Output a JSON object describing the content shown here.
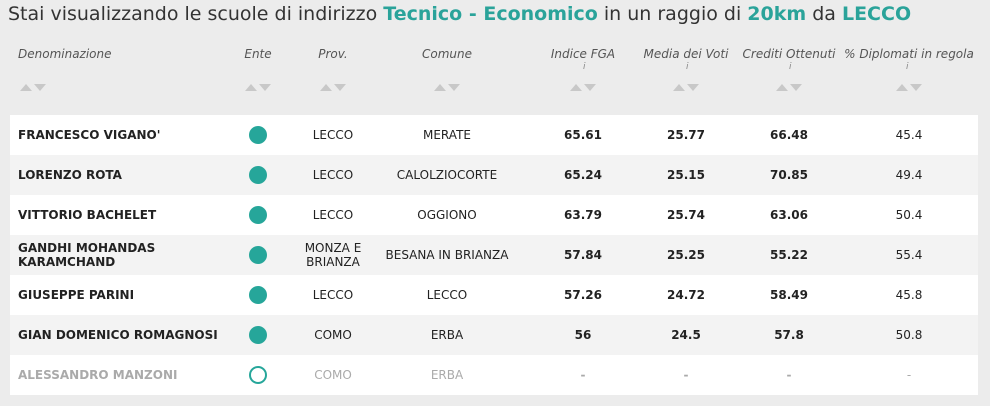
{
  "title": {
    "parts": [
      {
        "text": "Stai visualizzando le scuole di indirizzo",
        "highlight": false
      },
      {
        "text": "Tecnico - Economico",
        "highlight": true
      },
      {
        "text": "in un raggio di",
        "highlight": false
      },
      {
        "text": "20km",
        "highlight": true
      },
      {
        "text": "da",
        "highlight": false
      },
      {
        "text": "LECCO",
        "highlight": true
      }
    ]
  },
  "table": {
    "columns": [
      {
        "label": "Denominazione",
        "info": false
      },
      {
        "label": "Ente",
        "info": false
      },
      {
        "label": "Prov.",
        "info": false
      },
      {
        "label": "Comune",
        "info": false
      },
      {
        "label": "Indice FGA",
        "info": true
      },
      {
        "label": "Media dei Voti",
        "info": true
      },
      {
        "label": "Crediti Ottenuti",
        "info": true
      },
      {
        "label": "% Diplomati in regola",
        "info": true
      }
    ],
    "info_label": "i",
    "rows": [
      {
        "name": "FRANCESCO VIGANO'",
        "active": true,
        "prov": "LECCO",
        "comune": "MERATE",
        "fga": 65.61,
        "media": 25.77,
        "crediti": 66.48,
        "diplomati": 45.4
      },
      {
        "name": "LORENZO ROTA",
        "active": true,
        "prov": "LECCO",
        "comune": "CALOLZIOCORTE",
        "fga": 65.24,
        "media": 25.15,
        "crediti": 70.85,
        "diplomati": 49.4
      },
      {
        "name": "VITTORIO BACHELET",
        "active": true,
        "prov": "LECCO",
        "comune": "OGGIONO",
        "fga": 63.79,
        "media": 25.74,
        "crediti": 63.06,
        "diplomati": 50.4
      },
      {
        "name": "GANDHI MOHANDAS KARAMCHAND",
        "active": true,
        "prov": "MONZA E BRIANZA",
        "comune": "BESANA IN BRIANZA",
        "fga": 57.84,
        "media": 25.25,
        "crediti": 55.22,
        "diplomati": 55.4
      },
      {
        "name": "GIUSEPPE PARINI",
        "active": true,
        "prov": "LECCO",
        "comune": "LECCO",
        "fga": 57.26,
        "media": 24.72,
        "crediti": 58.49,
        "diplomati": 45.8
      },
      {
        "name": "GIAN DOMENICO ROMAGNOSI",
        "active": true,
        "prov": "COMO",
        "comune": "ERBA",
        "fga": 56,
        "media": 24.5,
        "crediti": 57.8,
        "diplomati": 50.8
      },
      {
        "name": "ALESSANDRO MANZONI",
        "active": false,
        "prov": "COMO",
        "comune": "ERBA",
        "fga": "-",
        "media": "-",
        "crediti": "-",
        "diplomati": "-"
      }
    ]
  }
}
